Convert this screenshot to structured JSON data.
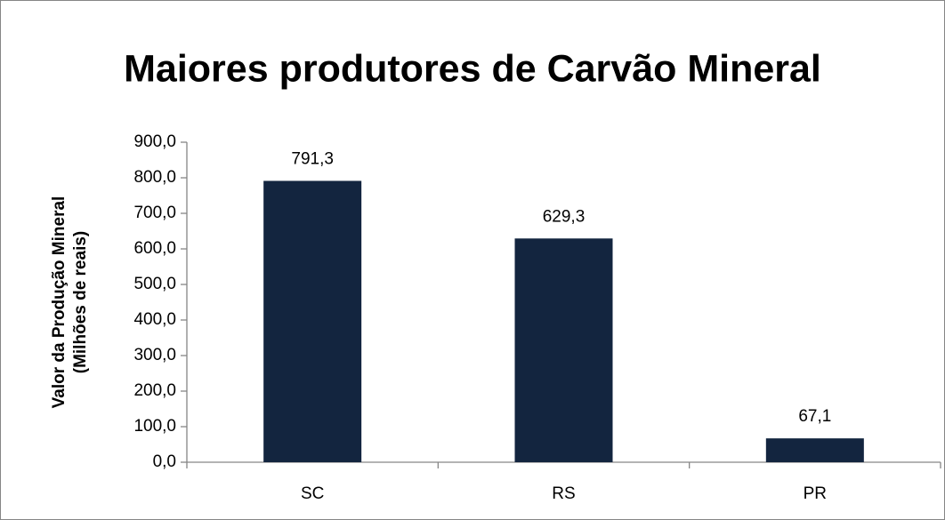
{
  "chart_data": {
    "type": "bar",
    "title": "Maiores produtores de Carvão Mineral",
    "y_label": [
      "Valor da Produção Mineral",
      "(Milhões de reais)"
    ],
    "categories": [
      "SC",
      "RS",
      "PR"
    ],
    "values": [
      791.3,
      629.3,
      67.1
    ],
    "value_labels": [
      "791,3",
      "629,3",
      "67,1"
    ],
    "color": "#13253f",
    "ylim": [
      0,
      900
    ],
    "yticks": [
      {
        "value": 0,
        "label": "0,0"
      },
      {
        "value": 100,
        "label": "100,0"
      },
      {
        "value": 200,
        "label": "200,0"
      },
      {
        "value": 300,
        "label": "300,0"
      },
      {
        "value": 400,
        "label": "400,0"
      },
      {
        "value": 500,
        "label": "500,0"
      },
      {
        "value": 600,
        "label": "600,0"
      },
      {
        "value": 700,
        "label": "700,0"
      },
      {
        "value": 800,
        "label": "800,0"
      },
      {
        "value": 900,
        "label": "900,0"
      }
    ],
    "grid": false
  }
}
